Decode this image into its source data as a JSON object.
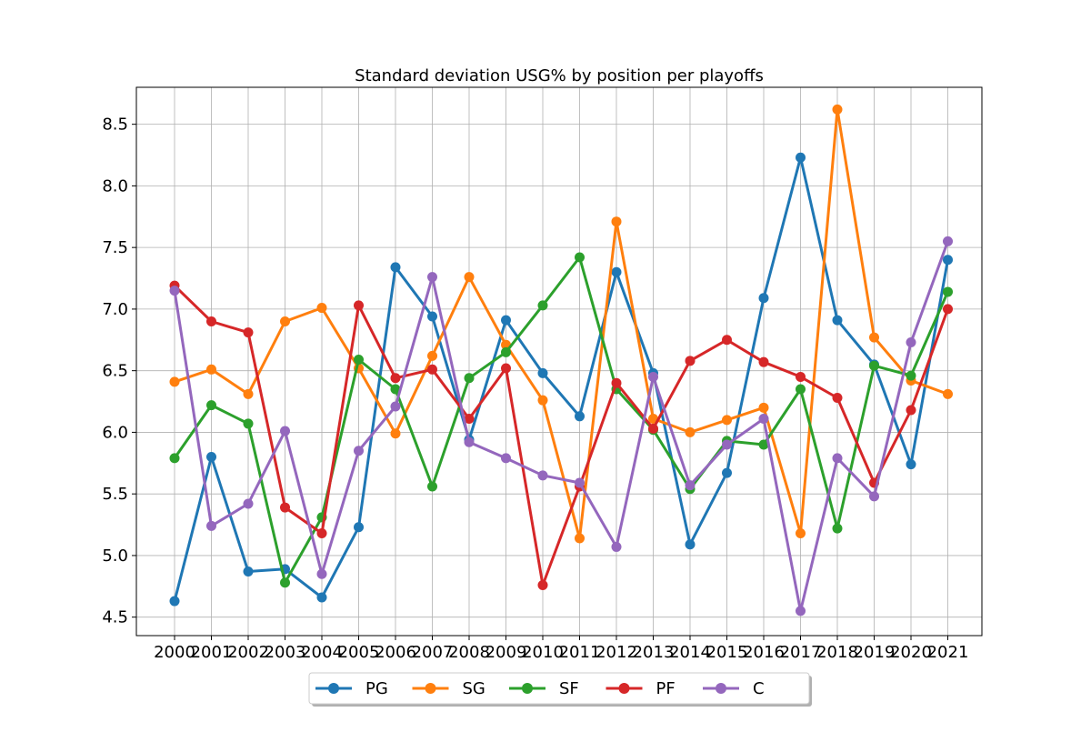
{
  "chart_data": {
    "type": "line",
    "title": "Standard deviation USG% by position per playoffs",
    "xlabel": "",
    "ylabel": "",
    "categories": [
      "2000",
      "2001",
      "2002",
      "2003",
      "2004",
      "2005",
      "2006",
      "2007",
      "2008",
      "2009",
      "2010",
      "2011",
      "2012",
      "2013",
      "2014",
      "2015",
      "2016",
      "2017",
      "2018",
      "2019",
      "2020",
      "2021"
    ],
    "ylim": [
      4.35,
      8.8
    ],
    "yticks": [
      "4.5",
      "5.0",
      "5.5",
      "6.0",
      "6.5",
      "7.0",
      "7.5",
      "8.0",
      "8.5"
    ],
    "grid": true,
    "legend_position": "bottom-center",
    "series": [
      {
        "name": "PG",
        "color": "#1f77b4",
        "values": [
          4.63,
          5.8,
          4.87,
          4.89,
          4.66,
          5.23,
          7.34,
          6.94,
          5.94,
          6.91,
          6.48,
          6.13,
          7.3,
          6.48,
          5.09,
          5.67,
          7.09,
          8.23,
          6.91,
          6.55,
          5.74,
          7.4
        ]
      },
      {
        "name": "SG",
        "color": "#ff7f0e",
        "values": [
          6.41,
          6.51,
          6.31,
          6.9,
          7.01,
          6.52,
          5.99,
          6.62,
          7.26,
          6.71,
          6.26,
          5.14,
          7.71,
          6.11,
          6.0,
          6.1,
          6.2,
          5.18,
          8.62,
          6.77,
          6.42,
          6.31
        ]
      },
      {
        "name": "SF",
        "color": "#2ca02c",
        "values": [
          5.79,
          6.22,
          6.07,
          4.78,
          5.31,
          6.59,
          6.35,
          5.56,
          6.44,
          6.65,
          7.03,
          7.42,
          6.35,
          6.02,
          5.54,
          5.93,
          5.9,
          6.35,
          5.22,
          6.54,
          6.46,
          7.14
        ]
      },
      {
        "name": "PF",
        "color": "#d62728",
        "values": [
          7.19,
          6.9,
          6.81,
          5.39,
          5.18,
          7.03,
          6.44,
          6.51,
          6.11,
          6.52,
          4.76,
          5.56,
          6.4,
          6.03,
          6.58,
          6.75,
          6.57,
          6.45,
          6.28,
          5.59,
          6.18,
          7.0
        ]
      },
      {
        "name": "C",
        "color": "#9467bd",
        "values": [
          7.15,
          5.24,
          5.42,
          6.01,
          4.85,
          5.85,
          6.21,
          7.26,
          5.92,
          5.79,
          5.65,
          5.59,
          5.07,
          6.45,
          5.57,
          5.9,
          6.11,
          4.55,
          5.79,
          5.48,
          6.73,
          7.55
        ]
      }
    ]
  }
}
